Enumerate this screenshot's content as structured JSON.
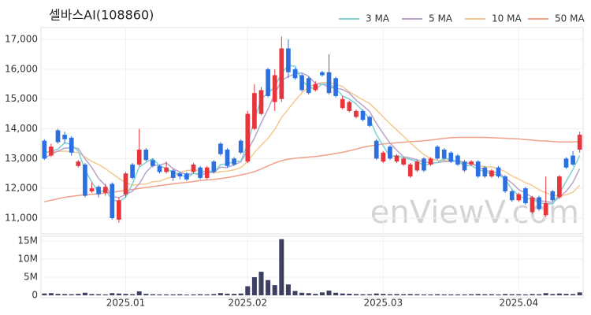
{
  "chart_data": {
    "type": "candlestick",
    "title": "셀바스AI(108860)",
    "watermark": "enViewV.com",
    "categories": [
      null,
      null,
      null,
      null,
      null,
      null,
      null,
      null,
      null,
      null,
      null,
      null,
      "2025.01",
      null,
      null,
      null,
      null,
      null,
      null,
      null,
      null,
      null,
      null,
      null,
      null,
      null,
      null,
      null,
      null,
      null,
      "2025.02",
      null,
      null,
      null,
      null,
      null,
      null,
      null,
      null,
      null,
      null,
      null,
      null,
      null,
      null,
      null,
      null,
      null,
      null,
      null,
      "2025.03",
      null,
      null,
      null,
      null,
      null,
      null,
      null,
      null,
      null,
      null,
      null,
      null,
      null,
      null,
      null,
      null,
      null,
      null,
      null,
      "2025.04",
      null,
      null,
      null,
      null,
      null,
      null,
      null,
      null,
      null
    ],
    "open": [
      13600,
      13100,
      13950,
      13800,
      13700,
      12750,
      12800,
      11900,
      12050,
      11850,
      12150,
      10950,
      11800,
      12800,
      12800,
      13300,
      12950,
      12750,
      12550,
      12600,
      12500,
      12500,
      12550,
      12700,
      12350,
      12900,
      13500,
      13300,
      13000,
      13600,
      12900,
      14000,
      14500,
      16000,
      14900,
      15000,
      16700,
      16000,
      15800,
      15700,
      15300,
      15900,
      15900,
      15700,
      14700,
      14600,
      14400,
      14600,
      14400,
      13600,
      12900,
      13400,
      12900,
      12800,
      12400,
      12600,
      13000,
      12800,
      13400,
      13300,
      13200,
      13100,
      12900,
      12800,
      12900,
      12700,
      12400,
      12700,
      12400,
      11900,
      11600,
      12000,
      11200,
      11700,
      11100,
      11900,
      11700,
      13000,
      13100,
      13300
    ],
    "high": [
      13650,
      13500,
      14000,
      13900,
      13750,
      12950,
      12850,
      12200,
      12100,
      12150,
      12200,
      11700,
      12550,
      12850,
      14000,
      13350,
      13000,
      12800,
      12900,
      12650,
      12550,
      12550,
      12850,
      12750,
      12750,
      12950,
      13550,
      13350,
      13050,
      13650,
      14600,
      15500,
      15400,
      16050,
      16000,
      17100,
      17000,
      16050,
      15850,
      15750,
      15600,
      15950,
      16500,
      15750,
      15100,
      14950,
      14650,
      14650,
      14450,
      13650,
      13250,
      13450,
      13150,
      13050,
      12850,
      12950,
      13050,
      13050,
      13450,
      13350,
      13250,
      13150,
      12950,
      12950,
      12950,
      12750,
      12650,
      12750,
      12450,
      11950,
      11850,
      12050,
      11750,
      11750,
      12400,
      11950,
      12450,
      13050,
      13250,
      13900
    ],
    "low": [
      12950,
      13050,
      13500,
      13500,
      13100,
      12700,
      11700,
      11850,
      11700,
      11750,
      10950,
      10850,
      11700,
      12300,
      12750,
      12900,
      12700,
      12500,
      12500,
      12250,
      12300,
      12250,
      12500,
      12300,
      12300,
      12500,
      13100,
      12700,
      12750,
      13150,
      12850,
      13950,
      14450,
      15050,
      14600,
      14900,
      15700,
      15650,
      15250,
      15150,
      15250,
      15750,
      15150,
      15050,
      14650,
      14550,
      14350,
      14250,
      14050,
      12950,
      12850,
      12950,
      12850,
      12750,
      12350,
      12550,
      12550,
      12750,
      12950,
      12950,
      12850,
      12750,
      12550,
      12750,
      12350,
      12350,
      12350,
      12350,
      11850,
      11550,
      11550,
      11450,
      11150,
      11250,
      11050,
      11550,
      11650,
      12650,
      12750,
      13200
    ],
    "close": [
      13000,
      13400,
      13550,
      13650,
      13200,
      12900,
      11750,
      12000,
      11800,
      12050,
      11000,
      11600,
      12500,
      12350,
      13300,
      12950,
      12750,
      12550,
      12700,
      12350,
      12400,
      12300,
      12800,
      12350,
      12700,
      12550,
      13150,
      12750,
      12800,
      13200,
      14500,
      15200,
      15300,
      15100,
      15800,
      16700,
      15900,
      15700,
      15300,
      15200,
      15500,
      15800,
      15200,
      15100,
      15000,
      14900,
      14600,
      14300,
      14100,
      13000,
      13200,
      13000,
      13100,
      13000,
      12800,
      12900,
      12600,
      13000,
      13000,
      13000,
      12900,
      12800,
      12600,
      12900,
      12400,
      12400,
      12600,
      12400,
      11900,
      11600,
      11800,
      11500,
      11700,
      11300,
      11500,
      11600,
      12400,
      12700,
      12800,
      13800
    ],
    "volume": [
      500000,
      600000,
      400000,
      350000,
      300000,
      400000,
      700000,
      350000,
      300000,
      250000,
      600000,
      500000,
      400000,
      300000,
      1100000,
      400000,
      300000,
      250000,
      250000,
      250000,
      300000,
      200000,
      250000,
      300000,
      250000,
      350000,
      600000,
      450000,
      400000,
      500000,
      2500000,
      5000000,
      6500000,
      4200000,
      2800000,
      15500000,
      3000000,
      1200000,
      700000,
      600000,
      400000,
      800000,
      1300000,
      700000,
      500000,
      450000,
      350000,
      300000,
      300000,
      500000,
      400000,
      300000,
      350000,
      300000,
      350000,
      300000,
      250000,
      250000,
      300000,
      250000,
      250000,
      250000,
      250000,
      300000,
      350000,
      300000,
      300000,
      250000,
      350000,
      300000,
      300000,
      250000,
      350000,
      300000,
      600000,
      350000,
      500000,
      400000,
      350000,
      800000
    ],
    "series": [
      {
        "name": "3 MA",
        "color": "#7fd0d3",
        "values": [
          13200,
          13250,
          13317,
          13533,
          13467,
          13250,
          12617,
          12217,
          11850,
          11950,
          11617,
          11550,
          11700,
          12150,
          12717,
          12867,
          13000,
          12750,
          12667,
          12533,
          12483,
          12350,
          12500,
          12483,
          12617,
          12533,
          12800,
          12817,
          12900,
          12917,
          13500,
          14300,
          15000,
          15200,
          15400,
          15867,
          16133,
          16100,
          15633,
          15400,
          15333,
          15500,
          15500,
          15367,
          15100,
          15000,
          14833,
          14600,
          14333,
          13800,
          13433,
          13067,
          13100,
          13033,
          12967,
          12900,
          12767,
          12833,
          12867,
          13000,
          12967,
          12900,
          12767,
          12767,
          12633,
          12567,
          12467,
          12467,
          12300,
          11967,
          11767,
          11633,
          11667,
          11500,
          11500,
          11467,
          11833,
          12233,
          12633,
          13100
        ]
      },
      {
        "name": "5 MA",
        "color": "#b9a3cc",
        "values": [
          13000,
          13150,
          13250,
          13350,
          13360,
          13340,
          12990,
          12700,
          12330,
          12100,
          11720,
          11690,
          11790,
          11900,
          12150,
          12540,
          12770,
          12780,
          12850,
          12660,
          12550,
          12460,
          12510,
          12440,
          12510,
          12540,
          12710,
          12700,
          12790,
          12890,
          13280,
          13690,
          14200,
          14660,
          15180,
          15620,
          15760,
          15840,
          15880,
          15760,
          15520,
          15500,
          15400,
          15360,
          15320,
          15200,
          14960,
          14780,
          14580,
          14180,
          13840,
          13520,
          13280,
          13060,
          13020,
          12960,
          12880,
          12860,
          12860,
          12900,
          12900,
          12940,
          12860,
          12840,
          12720,
          12620,
          12540,
          12540,
          12340,
          12180,
          11960,
          11840,
          11700,
          11580,
          11560,
          11520,
          11700,
          11900,
          12200,
          12660
        ]
      },
      {
        "name": "10 MA",
        "color": "#f3c98f",
        "values": [
          13200,
          13220,
          13240,
          13250,
          13230,
          13200,
          13050,
          12900,
          12800,
          12660,
          12500,
          12330,
          12200,
          12100,
          12140,
          12140,
          12220,
          12240,
          12330,
          12390,
          12530,
          12600,
          12620,
          12600,
          12560,
          12520,
          12560,
          12580,
          12620,
          12700,
          12910,
          13200,
          13450,
          13680,
          13980,
          14380,
          14660,
          14950,
          15200,
          15400,
          15500,
          15560,
          15550,
          15500,
          15420,
          15240,
          15110,
          14970,
          14850,
          14630,
          14400,
          14170,
          13960,
          13750,
          13530,
          13330,
          13130,
          13000,
          12940,
          12940,
          12910,
          12890,
          12840,
          12830,
          12770,
          12720,
          12720,
          12660,
          12560,
          12420,
          12310,
          12190,
          12100,
          11950,
          11850,
          11770,
          11750,
          11780,
          11870,
          12100
        ]
      },
      {
        "name": "50 MA",
        "color": "#f2a088",
        "values": [
          11550,
          11600,
          11650,
          11700,
          11730,
          11760,
          11780,
          11800,
          11820,
          11840,
          11870,
          11900,
          11930,
          11960,
          12000,
          12030,
          12060,
          12090,
          12120,
          12150,
          12180,
          12200,
          12230,
          12260,
          12280,
          12300,
          12330,
          12360,
          12400,
          12450,
          12500,
          12560,
          12650,
          12750,
          12850,
          12930,
          12980,
          13010,
          13030,
          13050,
          13070,
          13100,
          13130,
          13170,
          13210,
          13260,
          13320,
          13380,
          13420,
          13460,
          13490,
          13510,
          13530,
          13550,
          13570,
          13580,
          13600,
          13620,
          13650,
          13680,
          13700,
          13710,
          13710,
          13710,
          13710,
          13710,
          13700,
          13690,
          13680,
          13670,
          13660,
          13640,
          13620,
          13600,
          13590,
          13570,
          13560,
          13560,
          13560,
          13570
        ]
      }
    ],
    "up_color": "#e8343b",
    "down_color": "#2b6fe0",
    "volume_color": "#3e4063",
    "ylim": [
      10470,
      17400
    ],
    "yticks": [
      {
        "value": 11000,
        "label": "11,000"
      },
      {
        "value": 12000,
        "label": "12,000"
      },
      {
        "value": 13000,
        "label": "13,000"
      },
      {
        "value": 14000,
        "label": "14,000"
      },
      {
        "value": 15000,
        "label": "15,000"
      },
      {
        "value": 16000,
        "label": "16,000"
      },
      {
        "value": 17000,
        "label": "17,000"
      }
    ],
    "volume_ylim": [
      0,
      16300000
    ],
    "volume_yticks": [
      0,
      {
        "value": 5000000,
        "label": "5M"
      },
      {
        "value": 10000000,
        "label": "10M"
      },
      {
        "value": 15000000,
        "label": "15M"
      }
    ],
    "grid": true,
    "legend": "top-right"
  }
}
